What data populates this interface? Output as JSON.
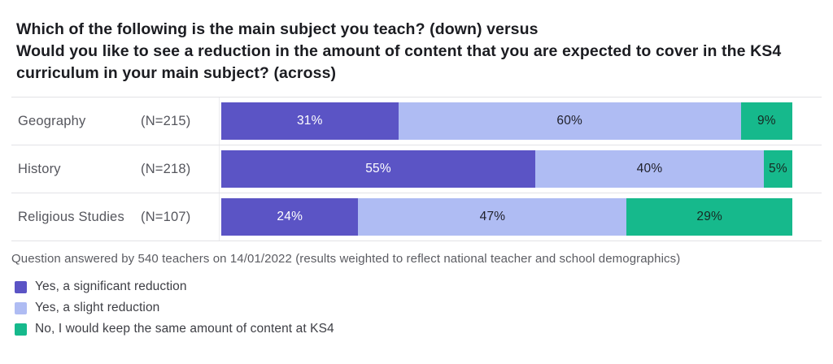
{
  "title": {
    "line1": "Which of the following is the main subject you teach? (down) versus",
    "line2": "Would you like to see a reduction in the amount of content that you are expected to cover in the KS4 curriculum in your main subject? (across)"
  },
  "footnote": "Question answered by 540 teachers on 14/01/2022 (results weighted to reflect national teacher and school demographics)",
  "chart_data": {
    "type": "bar",
    "subtype": "horizontal-stacked-100-percent",
    "categories": [
      "Geography",
      "History",
      "Religious Studies"
    ],
    "category_n_labels": [
      "(N=215)",
      "(N=218)",
      "(N=107)"
    ],
    "series": [
      {
        "name": "Yes, a significant reduction",
        "color": "#5B54C5",
        "label_color": "#ffffff",
        "values": [
          31,
          55,
          24
        ]
      },
      {
        "name": "Yes, a slight reduction",
        "color": "#AFBCF3",
        "label_color": "#20212b",
        "values": [
          60,
          40,
          47
        ]
      },
      {
        "name": "No, I would keep the same amount of content at KS4",
        "color": "#16B98C",
        "label_color": "#172923",
        "values": [
          9,
          5,
          29
        ]
      }
    ],
    "value_suffix": "%",
    "xlim": [
      0,
      100
    ],
    "grid": false,
    "legend_position": "bottom-left"
  },
  "colors": {
    "background": "#ffffff",
    "title_text": "#1b1c21",
    "row_label_text": "#55565d",
    "separator_line": "#e2e2e6",
    "footnote_text": "#5b5c62",
    "legend_text": "#3d3e44"
  }
}
